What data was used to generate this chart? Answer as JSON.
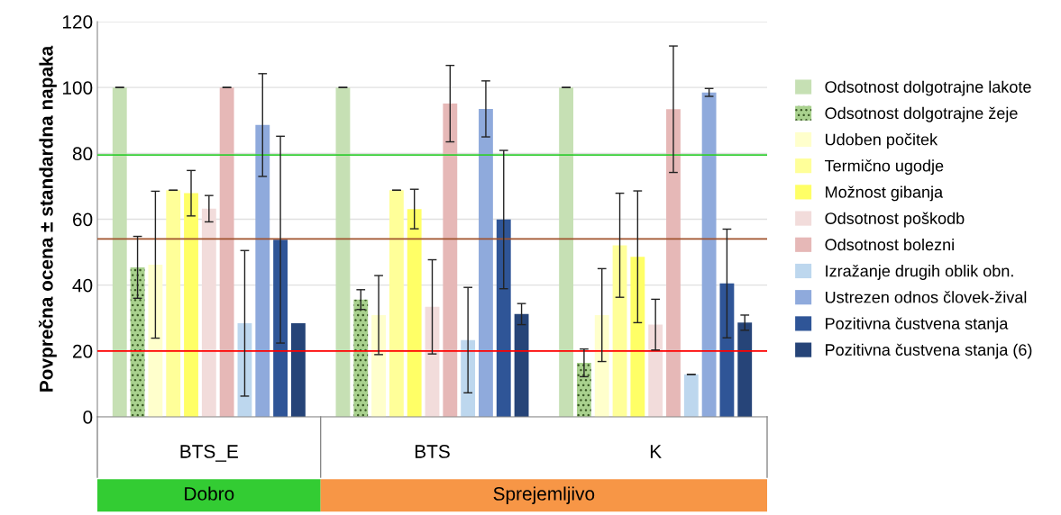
{
  "chart_data": {
    "type": "bar",
    "ylabel": "Povprečna ocena ± standardna napaka",
    "categories": [
      "BTS_E",
      "BTS",
      "K"
    ],
    "series": [
      {
        "name": "Odsotnost dolgotrajne lakote",
        "color": "#c6e0b4",
        "values": [
          100,
          100,
          100
        ],
        "errors": [
          0,
          0,
          0
        ]
      },
      {
        "name": "Odsotnost dolgotrajne žeje",
        "color": "#a9d18e",
        "values": [
          45.4,
          35.6,
          16.4
        ],
        "errors": [
          9.4,
          3,
          4.2
        ]
      },
      {
        "name": "Udoben počitek",
        "color": "#ffffcc",
        "values": [
          46.2,
          30.9,
          30.9
        ],
        "errors": [
          22.3,
          12,
          14.1
        ]
      },
      {
        "name": "Termično ugodje",
        "color": "#ffff99",
        "values": [
          68.8,
          68.8,
          52.1
        ],
        "errors": [
          0,
          0,
          15.8
        ]
      },
      {
        "name": "Možnost gibanja",
        "color": "#ffff66",
        "values": [
          67.9,
          63.1,
          48.6
        ],
        "errors": [
          6.9,
          6,
          20
        ]
      },
      {
        "name": "Odsotnost poškodb",
        "color": "#f2dcdb",
        "values": [
          63.2,
          33.4,
          28.0
        ],
        "errors": [
          4,
          14.3,
          7.7
        ]
      },
      {
        "name": "Odsotnost bolezni",
        "color": "#e6b8b7",
        "values": [
          100,
          95.1,
          93.4
        ],
        "errors": [
          0,
          11.6,
          19.2
        ]
      },
      {
        "name": "Izražanje drugih oblik obn.",
        "color": "#bdd7ee",
        "values": [
          28.4,
          23.3,
          12.9
        ],
        "errors": [
          22.1,
          16,
          0
        ]
      },
      {
        "name": "Ustrezen odnos človek-žival",
        "color": "#8faadc",
        "values": [
          88.6,
          93.5,
          98.5
        ],
        "errors": [
          15.6,
          8.5,
          1.2
        ]
      },
      {
        "name": "Pozitivna čustvena stanja",
        "color": "#2f5597",
        "values": [
          53.8,
          59.9,
          40.5
        ],
        "errors": [
          31.4,
          21,
          16.5
        ]
      },
      {
        "name": "Pozitivna čustvena stanja (6)",
        "color": "#264478",
        "values": [
          28.4,
          31.2,
          28.6
        ],
        "errors": [
          null,
          3.2,
          2.3
        ]
      }
    ],
    "ylim": [
      0,
      120
    ],
    "yticks": [
      0,
      20,
      40,
      60,
      80,
      100,
      120
    ],
    "grid": "y",
    "legend": "right",
    "ref_lines": [
      {
        "axis": "y",
        "value": 79.5,
        "color": "#33cc33"
      },
      {
        "axis": "y",
        "value": 54,
        "color": "#a0522d"
      },
      {
        "axis": "y",
        "value": 20,
        "color": "#ff0000"
      }
    ],
    "annotations": [
      "Dobro",
      "Sprejemljivo"
    ]
  }
}
